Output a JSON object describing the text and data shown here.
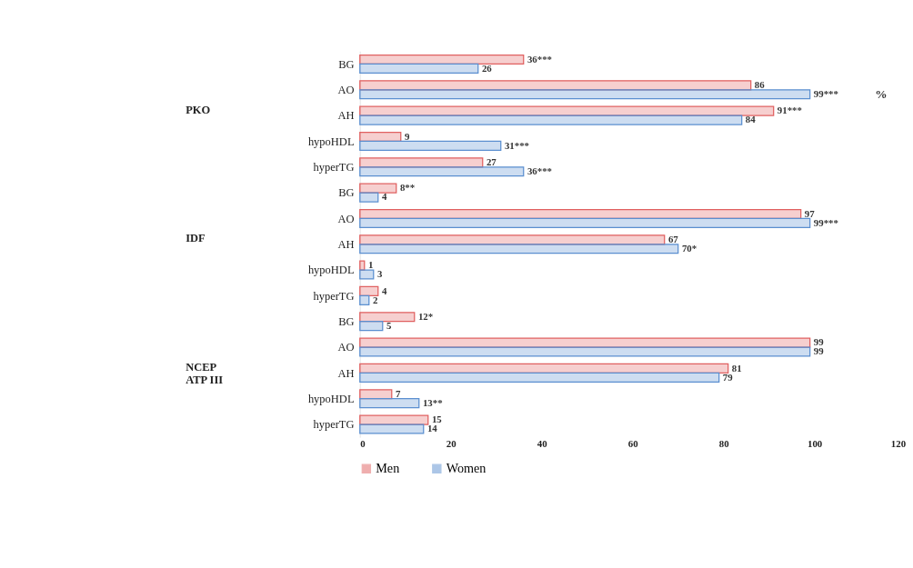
{
  "chart_data": {
    "type": "bar",
    "orientation": "horizontal",
    "categories": [
      "BG",
      "AO",
      "AH",
      "hypoHDL",
      "hyperTG",
      "BG",
      "AO",
      "AH",
      "hypoHDL",
      "hyperTG",
      "BG",
      "AO",
      "AH",
      "hypoHDL",
      "hyperTG"
    ],
    "series": [
      {
        "name": "Men",
        "color": "#e06060",
        "values": [
          36,
          86,
          91,
          9,
          27,
          8,
          97,
          67,
          1,
          4,
          12,
          99,
          81,
          7,
          15
        ],
        "value_labels": [
          "36***",
          "86",
          "91***",
          "9",
          "27",
          "8**",
          "97",
          "67",
          "1",
          "4",
          "12*",
          "99",
          "81",
          "7",
          "15"
        ]
      },
      {
        "name": "Women",
        "color": "#5b8fd0",
        "values": [
          26,
          99,
          84,
          31,
          36,
          4,
          99,
          70,
          3,
          2,
          5,
          99,
          79,
          13,
          14
        ],
        "value_labels": [
          "26",
          "99***",
          "84",
          "31***",
          "36***",
          "4",
          "99***",
          "70*",
          "3",
          "2",
          "5",
          "99",
          "79",
          "13**",
          "14"
        ]
      }
    ],
    "xlim": [
      0,
      120
    ],
    "xticks": [
      0,
      20,
      40,
      60,
      80,
      100,
      120
    ],
    "grid": false,
    "legend": "bottom",
    "annotations": [
      "PKO",
      "IDF",
      "NCEP ATP III",
      "%"
    ]
  }
}
